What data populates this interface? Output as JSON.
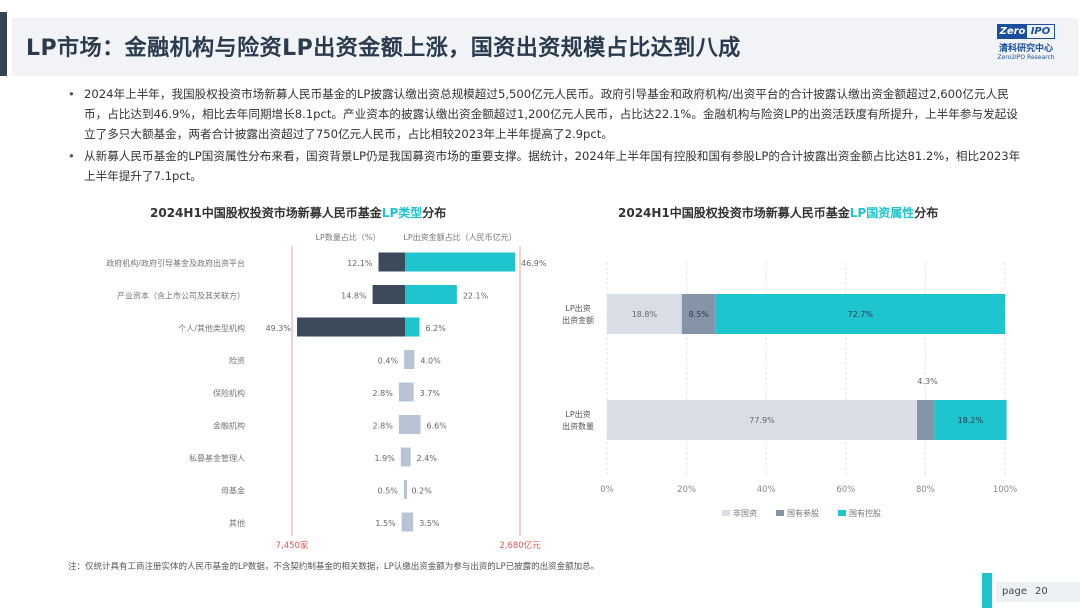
{
  "header": {
    "title": "LP市场：金融机构与险资LP出资金额上涨，国资出资规模占比达到八成",
    "logo": {
      "brand_left": "Zero",
      "brand_right": "IPO",
      "cn": "清科研究中心",
      "en": "Zero2IPO Research"
    }
  },
  "bullets": [
    "2024年上半年，我国股权投资市场新募人民币基金的LP披露认缴出资总规模超过5,500亿元人民币。政府引导基金和政府机构/出资平台的合计披露认缴出资金额超过2,600亿元人民币，占比达到46.9%，相比去年同期增长8.1pct。产业资本的披露认缴出资金额超过1,200亿元人民币，占比达22.1%。金融机构与险资LP的出资活跃度有所提升，上半年参与发起设立了多只大额基金，两者合计披露出资超过了750亿元人民币，占比相较2023年上半年提高了2.9pct。",
    "从新募人民币基金的LP国资属性分布来看，国资背景LP仍是我国募资市场的重要支撑。据统计，2024年上半年国有控股和国有参股LP的合计披露出资金额占比达81.2%，相比2023年上半年提升了7.1pct。"
  ],
  "charts": {
    "lp_type_title_pre": "2024H1中国股权投资市场新募人民币基金",
    "lp_type_title_hl": "LP类型",
    "lp_type_title_post": "分布",
    "ownership_title_pre": "2024H1中国股权投资市场新募人民币基金",
    "ownership_title_hl": "LP国资属性",
    "ownership_title_post": "分布"
  },
  "colors": {
    "dark": "#3d4a5c",
    "light": "#b8c4d6",
    "teal": "#1ec5cf",
    "grey": "#d9dde6",
    "mid": "#8694a8",
    "redline": "#f0a0a0",
    "grid": "#e3e6ea",
    "title_bg": "#f1f3f6"
  },
  "chart_data": [
    {
      "type": "bar",
      "orientation": "horizontal-diverging",
      "legend": [
        "LP数量占比（%）",
        "LP出资金额占比（人民币亿元）"
      ],
      "categories": [
        "政府机构/政府引导基金及政府出资平台",
        "产业资本（含上市公司及其关联方）",
        "个人/其他类型机构",
        "险资",
        "保险机构",
        "金融机构",
        "私募基金管理人",
        "母基金",
        "其他"
      ],
      "series": [
        {
          "name": "LP数量占比（%）",
          "values": [
            12.1,
            14.8,
            49.3,
            0.4,
            2.8,
            2.8,
            1.9,
            0.5,
            1.5
          ]
        },
        {
          "name": "LP出资金额占比（人民币亿元）",
          "values": [
            46.9,
            22.1,
            6.2,
            4.0,
            3.7,
            6.6,
            2.4,
            0.2,
            3.5
          ]
        }
      ],
      "axis_totals": [
        "7,450家",
        "2,680亿元"
      ]
    },
    {
      "type": "bar",
      "orientation": "horizontal-stacked-100",
      "categories": [
        "LP出资出资金额",
        "LP出资出资数量"
      ],
      "x_ticks": [
        "0%",
        "20%",
        "40%",
        "60%",
        "80%",
        "100%"
      ],
      "xlim": [
        0,
        100
      ],
      "legend": [
        "非国资",
        "国有参股",
        "国有控股"
      ],
      "series": [
        {
          "name": "非国资",
          "values": [
            18.8,
            77.9
          ]
        },
        {
          "name": "国有参股",
          "values": [
            8.5,
            4.3
          ]
        },
        {
          "name": "国有控股",
          "values": [
            72.7,
            18.2
          ]
        }
      ],
      "labels": {
        "non_state": [
          "18.8%",
          "77.9%"
        ],
        "minority": [
          "8.5%",
          "4.3%"
        ],
        "controlled": [
          "72.7%",
          "18.2%"
        ]
      }
    }
  ],
  "note": "注：仅统计具有工商注册实体的人民币基金的LP数据，不含契约制基金的相关数据，LP认缴出资金额为参与出资的LP已披露的出资金额加总。",
  "page": {
    "label": "page",
    "number": "20"
  }
}
